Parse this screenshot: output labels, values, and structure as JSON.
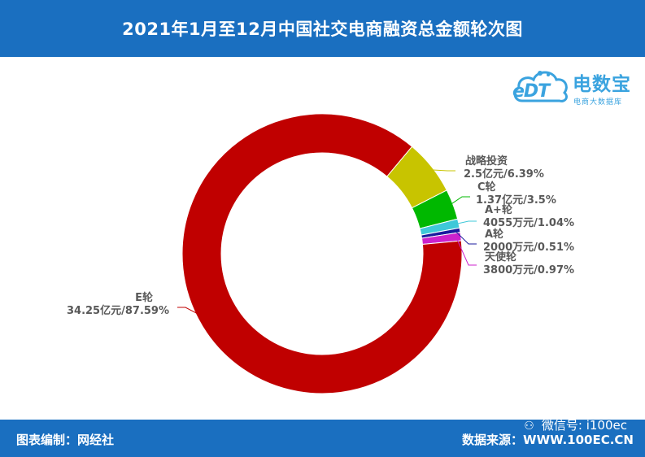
{
  "header": {
    "title": "2021年1月至12月中国社交电商融资总金额轮次图"
  },
  "logo": {
    "mark": "eDT",
    "name": "电数宝",
    "tagline": "电商大数据库"
  },
  "footer": {
    "credit": "图表编制：网经社",
    "source": "数据来源：WWW.100EC.CN",
    "wechat": "微信号: i100ec"
  },
  "colors": {
    "header_bg": "#1a6fc0",
    "E": "#c00000",
    "strategic": "#c8c400",
    "C": "#00b800",
    "A_plus": "#3fc8d8",
    "A": "#1a1a9e",
    "angel": "#cc22cc"
  },
  "chart_data": {
    "type": "pie",
    "variant": "donut",
    "title": "2021年1月至12月中国社交电商融资总金额轮次图",
    "slices": [
      {
        "name": "E轮",
        "amount": "34.25亿元",
        "percent": 87.59,
        "color": "#c00000"
      },
      {
        "name": "战略投资",
        "amount": "2.5亿元",
        "percent": 6.39,
        "color": "#c8c400"
      },
      {
        "name": "C轮",
        "amount": "1.37亿元",
        "percent": 3.5,
        "color": "#00b800"
      },
      {
        "name": "A+轮",
        "amount": "4055万元",
        "percent": 1.04,
        "color": "#3fc8d8"
      },
      {
        "name": "A轮",
        "amount": "2000万元",
        "percent": 0.51,
        "color": "#1a1a9e"
      },
      {
        "name": "天使轮",
        "amount": "3800万元",
        "percent": 0.97,
        "color": "#cc22cc"
      }
    ],
    "labels": [
      {
        "line1": "战略投资",
        "line2": "2.5亿元/6.39%"
      },
      {
        "line1": "C轮",
        "line2": "1.37亿元/3.5%"
      },
      {
        "line1": "A+轮",
        "line2": "4055万元/1.04%"
      },
      {
        "line1": "A轮",
        "line2": "2000万元/0.51%"
      },
      {
        "line1": "天使轮",
        "line2": "3800万元/0.97%"
      },
      {
        "line1": "E轮",
        "line2": "34.25亿元/87.59%"
      }
    ]
  }
}
